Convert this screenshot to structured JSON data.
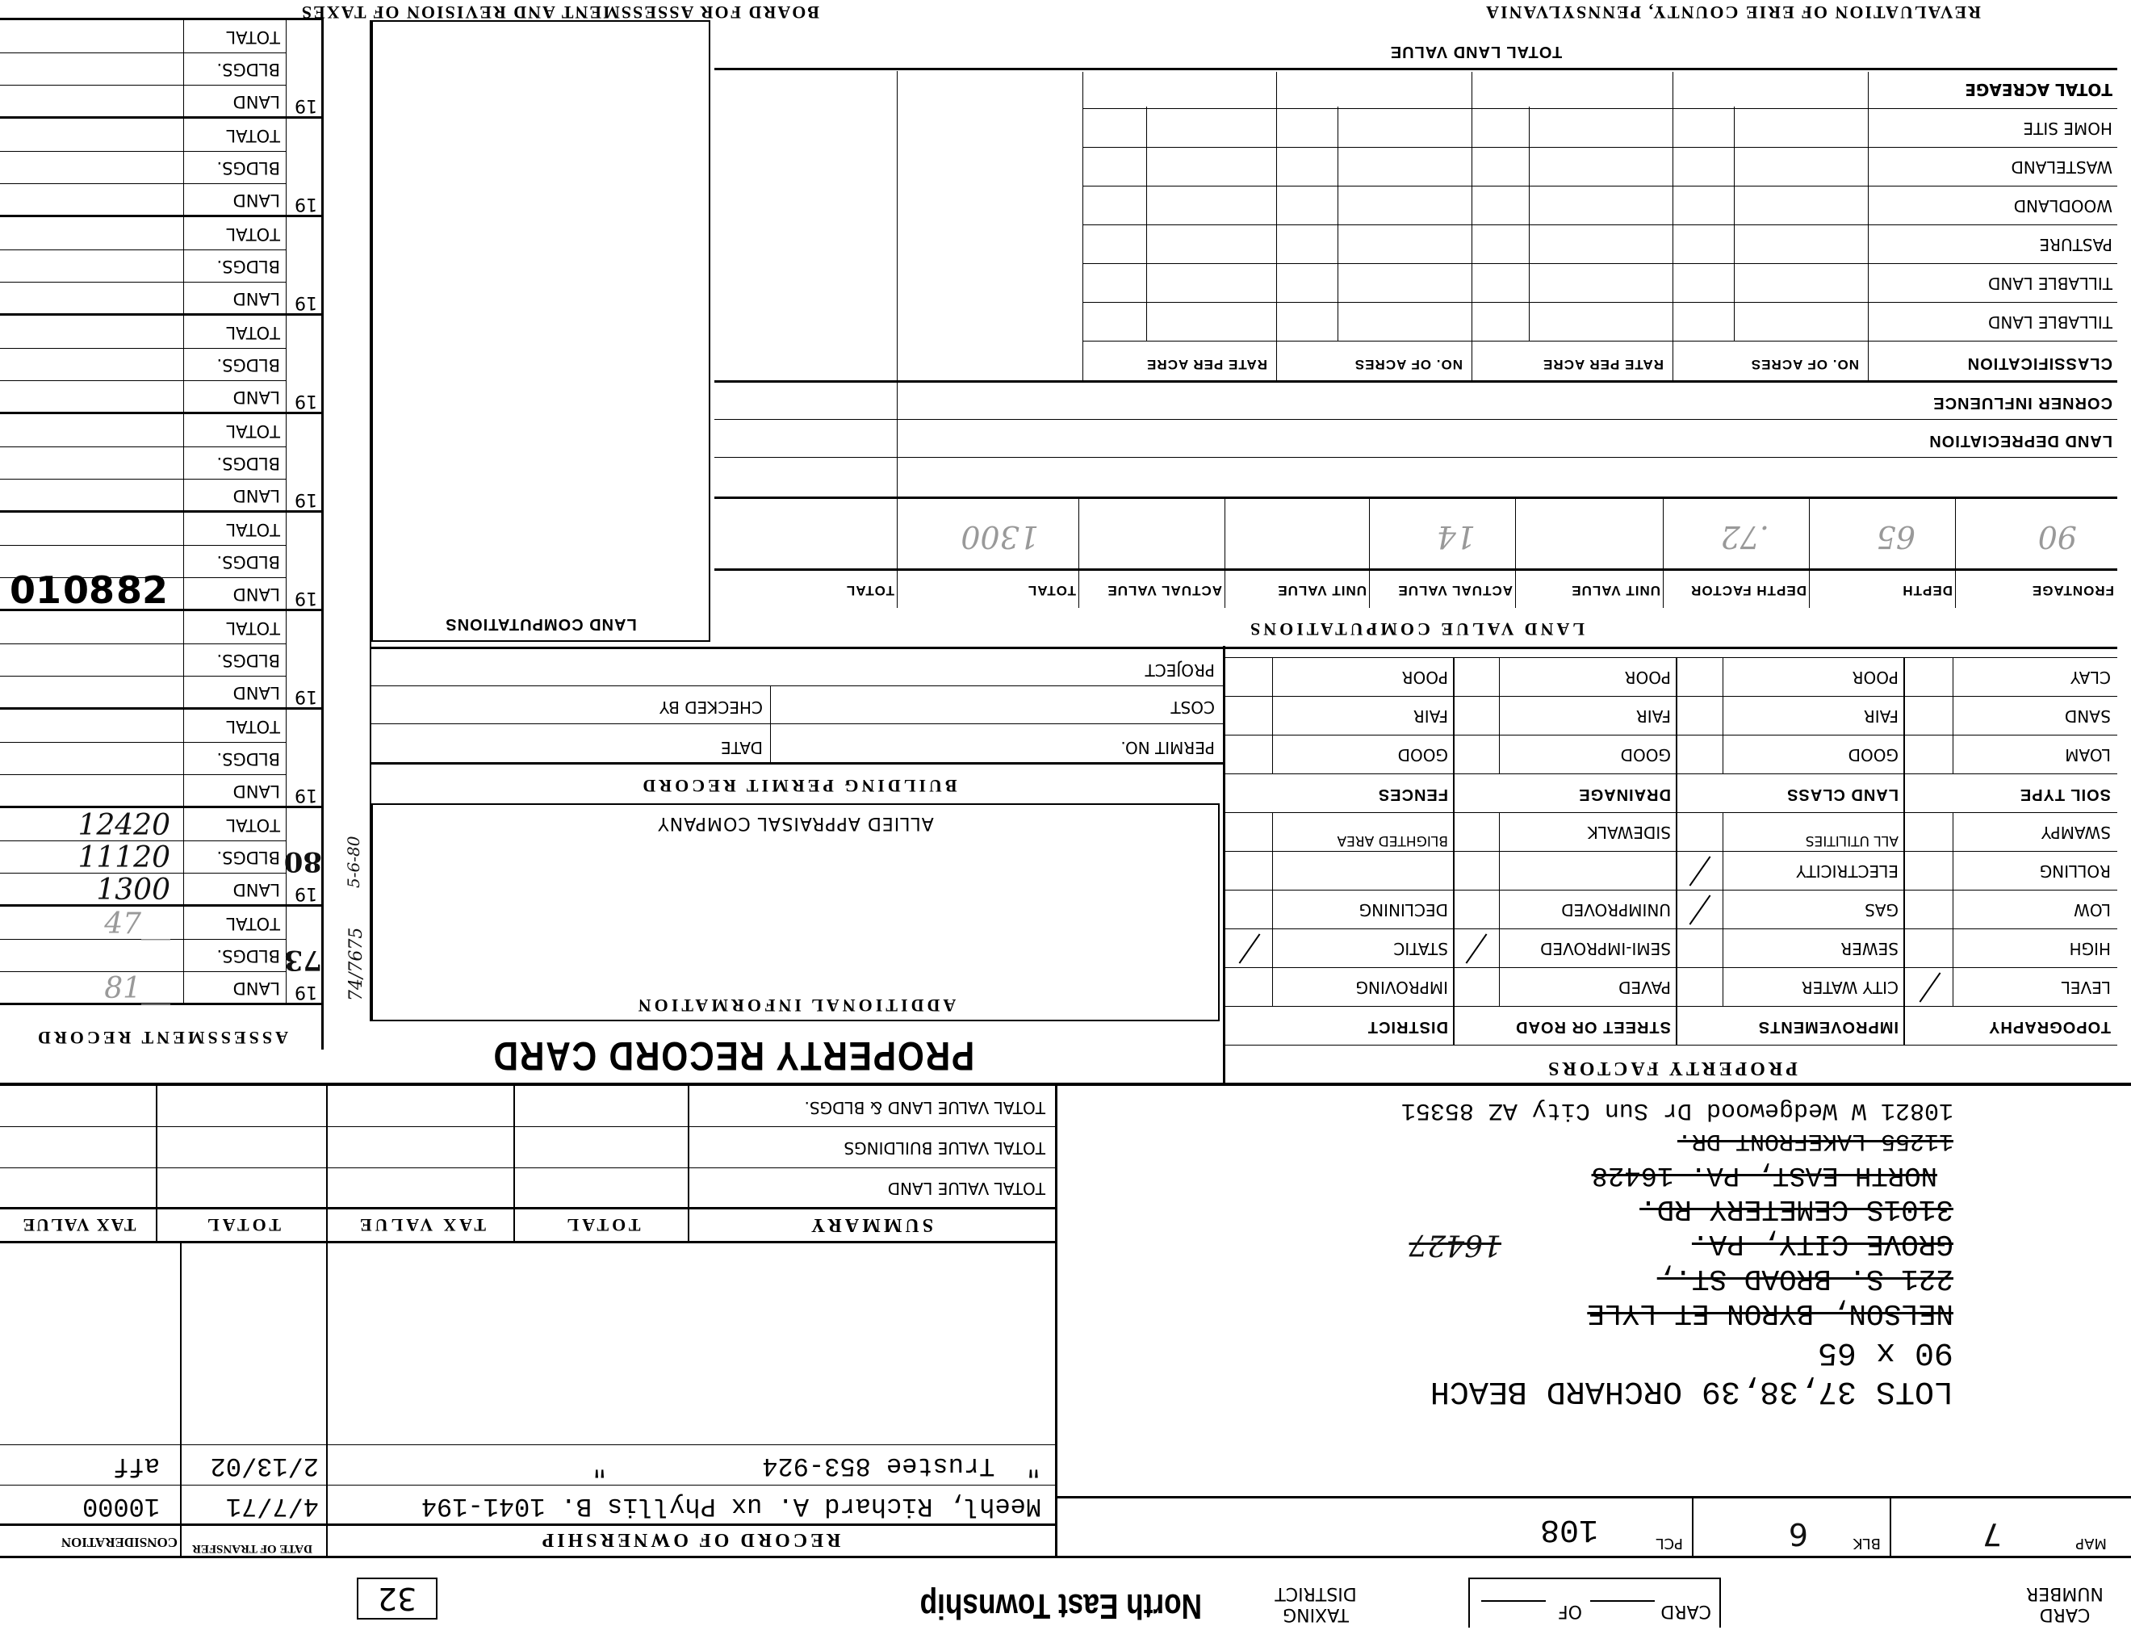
{
  "header": {
    "card_number_label": "CARD NUMBER",
    "card_label": "CARD",
    "of_label": "OF",
    "taxing_district_label": "TAXING DISTRICT",
    "taxing_district": "North East Township",
    "district_code": "32"
  },
  "parcel": {
    "map_label": "MAP",
    "map": "7",
    "blk_label": "BLK",
    "blk": "6",
    "pcl_label": "PCL",
    "pcl": "108"
  },
  "address_block": {
    "legal": "LOTS 37,38,39 ORCHARD BEACH",
    "dimensions": "90 x 65",
    "prior_lines": [
      "NELSON, BYRON ET LYLE",
      "221 S. BROAD ST.,",
      "GROVE CITY, PA.",
      "3101S CEMETERY RD.",
      "NORTH EAST, PA. 16428",
      "11255 LAKEFRONT DR."
    ],
    "handwritten_struck": "16427",
    "current_address": "10821 W Wedgewood Dr Sun City AZ  85351"
  },
  "ownership": {
    "title": "RECORD OF OWNERSHIP",
    "date_col": "DATE OF TRANSFER",
    "consideration_col": "CONSIDERATION",
    "rows": [
      {
        "owner": "Meehl, Richard A. ux Phyllis B. 1041-194",
        "date": "4/7/71",
        "consideration": "10000"
      },
      {
        "owner": "\"  Trustee 853-924          \"",
        "date": "2/13/02",
        "consideration": "aff"
      }
    ]
  },
  "summary": {
    "title": "SUMMARY",
    "cols": [
      "TOTAL",
      "TAX VALUE",
      "TOTAL",
      "TAX VALUE"
    ],
    "rows": [
      "TOTAL VALUE LAND",
      "TOTAL VALUE BUILDINGS",
      "TOTAL VALUE LAND & BLDGS."
    ]
  },
  "property_factors": {
    "title": "PROPERTY FACTORS",
    "headers": [
      "TOPOGRAPHY",
      "IMPROVEMENTS",
      "STREET OR ROAD",
      "DISTRICT"
    ],
    "rows": [
      [
        "LEVEL",
        "CITY WATER",
        "PAVED",
        "IMPROVING"
      ],
      [
        "HIGH",
        "SEWER",
        "SEMI-IMPROVED",
        "STATIC"
      ],
      [
        "LOW",
        "GAS",
        "UNIMPROVED",
        "DECLINING"
      ],
      [
        "ROLLING",
        "ELECTRICITY",
        "",
        ""
      ],
      [
        "SWAMPY",
        "ALL UTILITIES",
        "SIDEWALK",
        "BLIGHTED AREA"
      ]
    ],
    "checked": [
      "LEVEL",
      "GAS",
      "ELECTRICITY",
      "SEMI-IMPROVED",
      "STATIC"
    ],
    "soil_headers": [
      "SOIL TYPE",
      "LAND CLASS",
      "DRAINAGE",
      "FENCES"
    ],
    "soil_rows": [
      [
        "LOAM",
        "GOOD",
        "GOOD",
        "GOOD"
      ],
      [
        "SAND",
        "FAIR",
        "FAIR",
        "FAIR"
      ],
      [
        "CLAY",
        "POOR",
        "POOR",
        "POOR"
      ]
    ]
  },
  "center": {
    "title": "PROPERTY RECORD CARD",
    "additional_info": "ADDITIONAL INFORMATION",
    "appraiser": "ALLIED APPRAISAL COMPANY",
    "permit_title": "BUILDING PERMIT RECORD",
    "permit_no": "PERMIT NO.",
    "date": "DATE",
    "cost": "COST",
    "checked_by": "CHECKED BY",
    "project": "PROJECT",
    "land_computations": "LAND COMPUTATIONS"
  },
  "land_value": {
    "title": "LAND VALUE COMPUTATIONS",
    "headers": [
      "FRONTAGE",
      "DEPTH",
      "DEPTH FACTOR",
      "UNIT VALUE",
      "ACTUAL VALUE",
      "UNIT VALUE",
      "ACTUAL VALUE",
      "TOTAL",
      "TOTAL"
    ],
    "entry": {
      "frontage": "90",
      "depth": "65",
      "depth_factor": ".72",
      "actual_value": "14",
      "total": "1300"
    },
    "land_depreciation": "LAND DEPRECIATION",
    "corner_influence": "CORNER INFLUENCE",
    "classification": "CLASSIFICATION",
    "acre_headers": [
      "NO. OF ACRES",
      "RATE PER ACRE",
      "NO. OF ACRES",
      "RATE PER ACRE"
    ],
    "acre_rows": [
      "TILLABLE LAND",
      "TILLABLE LAND",
      "PASTURE",
      "WOODLAND",
      "WASTELAND",
      "HOME SITE",
      "TOTAL ACREAGE"
    ],
    "total_land_value": "TOTAL LAND VALUE"
  },
  "assessment": {
    "title": "ASSESSMENT RECORD",
    "year_prefix": "19",
    "row_labels": [
      "LAND",
      "BLDGS.",
      "TOTAL"
    ],
    "groups": [
      {
        "year": "73",
        "land": "81__",
        "bldgs": "",
        "total": "47__"
      },
      {
        "year": "80",
        "land": "1300",
        "bldgs": "11120",
        "total": "12420"
      },
      {
        "year": "",
        "land": "",
        "bldgs": "",
        "total": ""
      },
      {
        "year": "",
        "land": "",
        "bldgs": "",
        "total": ""
      },
      {
        "year": "",
        "land": "",
        "bldgs": "",
        "total": ""
      },
      {
        "year": "",
        "land": "",
        "bldgs": "",
        "total": ""
      },
      {
        "year": "",
        "land": "",
        "bldgs": "",
        "total": ""
      },
      {
        "year": "",
        "land": "",
        "bldgs": "",
        "total": ""
      },
      {
        "year": "",
        "land": "",
        "bldgs": "",
        "total": ""
      },
      {
        "year": "",
        "land": "",
        "bldgs": "",
        "total": ""
      }
    ],
    "stamps": [
      "82",
      "08",
      "01"
    ],
    "margin_notes": [
      "74/7675",
      "5-6-80"
    ]
  },
  "footer": {
    "left": "REVALUATION OF ERIE COUNTY, PENNSYLVANIA",
    "right": "BOARD FOR ASSESSMENT AND REVISION OF TAXES"
  }
}
